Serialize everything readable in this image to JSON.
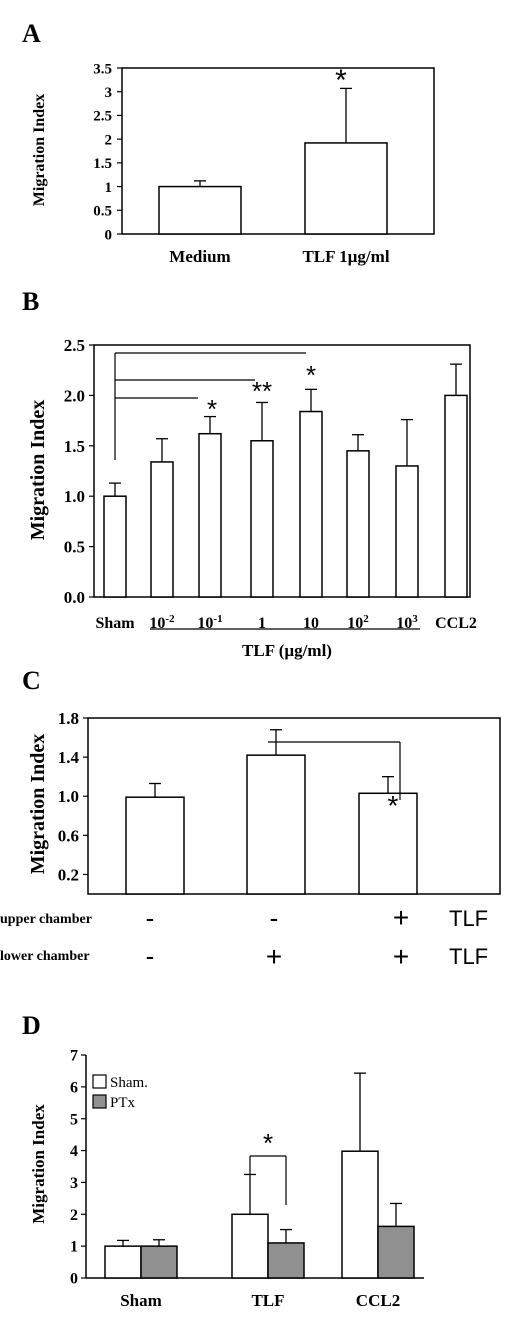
{
  "chart_data": [
    {
      "panel": "A",
      "type": "bar",
      "ylabel": "Migration Index",
      "ylim": [
        0,
        3.5
      ],
      "yticks": [
        "0",
        "0.5",
        "1",
        "1.5",
        "2",
        "2.5",
        "3",
        "3.5"
      ],
      "categories": [
        "Medium",
        "TLF 1µg/ml"
      ],
      "values": [
        1.0,
        1.92
      ],
      "errors": [
        0.12,
        1.15
      ],
      "annotations": [
        "*"
      ],
      "grid": false
    },
    {
      "panel": "B",
      "type": "bar",
      "ylabel": "Migration Index",
      "ylim": [
        0,
        2.5
      ],
      "yticks": [
        "0.0",
        "0.5",
        "1.0",
        "1.5",
        "2.0",
        "2.5"
      ],
      "categories": [
        "Sham",
        "10-2",
        "10-1",
        "1",
        "10",
        "102",
        "103",
        "CCL2"
      ],
      "values": [
        1.0,
        1.34,
        1.62,
        1.55,
        1.84,
        1.45,
        1.3,
        2.0
      ],
      "errors": [
        0.13,
        0.23,
        0.17,
        0.38,
        0.22,
        0.16,
        0.46,
        0.31
      ],
      "xlabel": "TLF (µg/ml)",
      "significance": [
        "*",
        "**",
        "*"
      ],
      "grid": false
    },
    {
      "panel": "C",
      "type": "bar",
      "ylabel": "Migration Index",
      "ylim": [
        0,
        1.8
      ],
      "yticks": [
        "0.2",
        "0.6",
        "1.0",
        "1.4",
        "1.8"
      ],
      "values": [
        0.99,
        1.42,
        1.03
      ],
      "errors": [
        0.14,
        0.26,
        0.17
      ],
      "rows": [
        {
          "label": "upper chamber",
          "marks": [
            "-",
            "-",
            "+"
          ],
          "suffix": "TLF"
        },
        {
          "label": "lower chamber",
          "marks": [
            "-",
            "+",
            "+"
          ],
          "suffix": "TLF"
        }
      ],
      "significance": [
        "*"
      ],
      "grid": false
    },
    {
      "panel": "D",
      "type": "bar",
      "ylabel": "Migration Index",
      "ylim": [
        0,
        7
      ],
      "yticks": [
        "0",
        "1",
        "2",
        "3",
        "4",
        "5",
        "6",
        "7"
      ],
      "categories": [
        "Sham",
        "TLF",
        "CCL2"
      ],
      "series": [
        {
          "name": "Sham.",
          "color": "#ffffff",
          "values": [
            1.0,
            2.0,
            3.98
          ],
          "errors": [
            0.18,
            1.25,
            2.45
          ]
        },
        {
          "name": "PTx",
          "color": "#909090",
          "values": [
            1.0,
            1.1,
            1.62
          ],
          "errors": [
            0.2,
            0.42,
            0.72
          ]
        }
      ],
      "legend_position": "top-left",
      "significance": [
        "*"
      ],
      "grid": false
    }
  ]
}
